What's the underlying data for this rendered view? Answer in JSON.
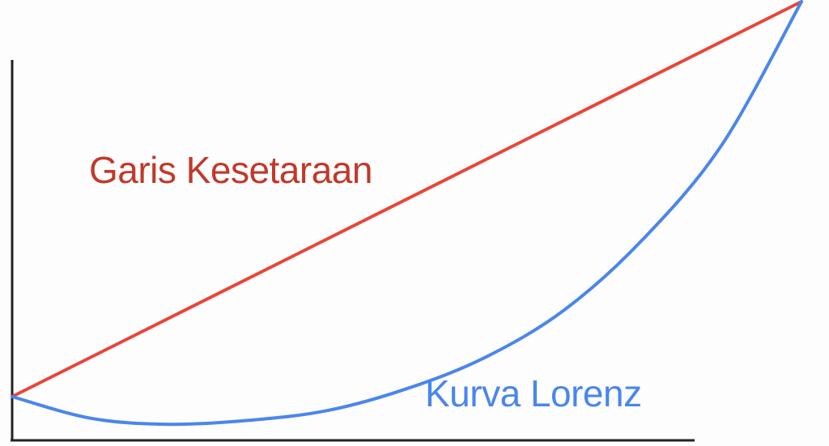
{
  "chart_data": {
    "type": "line",
    "title": "",
    "xlabel": "",
    "ylabel": "",
    "xlim": [
      0,
      1
    ],
    "ylim": [
      -0.07,
      1.05
    ],
    "grid": false,
    "legend": "none",
    "series": [
      {
        "name": "Garis Kesetaraan",
        "color": "#e8453c",
        "x": [
          0,
          1
        ],
        "y": [
          0,
          1
        ]
      },
      {
        "name": "Kurva Lorenz",
        "color": "#4a86ec",
        "x": [
          0,
          0.1,
          0.2,
          0.3,
          0.4,
          0.5,
          0.6,
          0.7,
          0.8,
          0.9,
          1
        ],
        "y": [
          0,
          -0.055,
          -0.07,
          -0.06,
          -0.035,
          0.02,
          0.1,
          0.22,
          0.4,
          0.64,
          1
        ]
      }
    ],
    "annotations": [
      {
        "text": "Garis Kesetaraan",
        "color": "#c0392b"
      },
      {
        "text": "Kurva Lorenz",
        "color": "#4a86ec"
      }
    ]
  }
}
